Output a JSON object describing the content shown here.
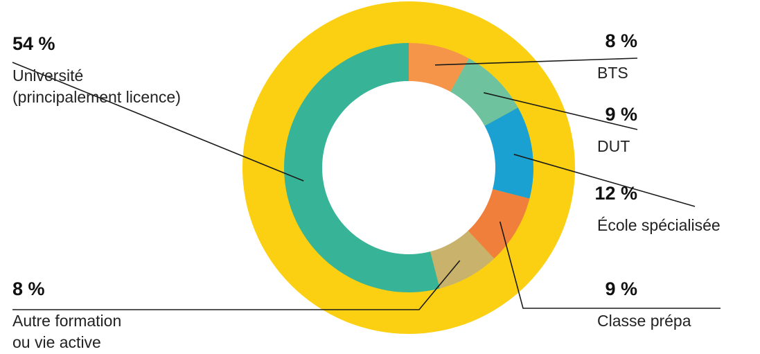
{
  "chart_data": {
    "type": "pie",
    "variant": "donut",
    "unit": "%",
    "outer_ring_color": "#FCD012",
    "slices": [
      {
        "pct_label": "54 %",
        "lines": [
          "Université",
          "(principalement licence)"
        ],
        "value": 54,
        "color": "#37B497"
      },
      {
        "pct_label": "8 %",
        "lines": [
          "BTS"
        ],
        "value": 8,
        "color": "#F5954A"
      },
      {
        "pct_label": "9 %",
        "lines": [
          "DUT"
        ],
        "value": 9,
        "color": "#6FC29E"
      },
      {
        "pct_label": "12 %",
        "lines": [
          "École spécialisée"
        ],
        "value": 12,
        "color": "#1AA1D1"
      },
      {
        "pct_label": "9 %",
        "lines": [
          "Classe prépa"
        ],
        "value": 9,
        "color": "#F07F3C"
      },
      {
        "pct_label": "8 %",
        "lines": [
          "Autre formation",
          "ou vie active"
        ],
        "value": 8,
        "color": "#C8B26C"
      }
    ]
  }
}
